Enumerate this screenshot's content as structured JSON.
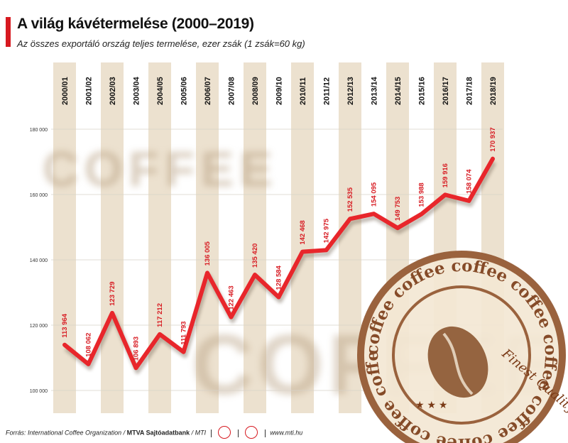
{
  "header": {
    "title": "A világ kávétermelése (2000–2019)",
    "subtitle": "Az összes exportáló ország teljes termelése, ezer zsák (1 zsák=60 kg)"
  },
  "background_text": {
    "word": "COFFEE"
  },
  "footer": {
    "source": "Forrás: International Coffee Organization / ",
    "agency": "MTVA Sajtóadatbank",
    "agency2": " / MTI",
    "url": "www.mti.hu"
  },
  "stamp": {
    "ring_text": "coffee",
    "script_text": "Finest Quality"
  },
  "colors": {
    "line": "#e8262b",
    "label": "#d71920",
    "column": "#ece1cf",
    "accent": "#d71920"
  },
  "chart_data": {
    "type": "line",
    "title": "A világ kávétermelése (2000–2019)",
    "ylabel": "",
    "xlabel": "",
    "categories": [
      "2000/01",
      "2001/02",
      "2002/03",
      "2003/04",
      "2004/05",
      "2005/06",
      "2006/07",
      "2007/08",
      "2008/09",
      "2009/10",
      "2010/11",
      "2011/12",
      "2012/13",
      "2013/14",
      "2014/15",
      "2015/16",
      "2016/17",
      "2017/18",
      "2018/19"
    ],
    "values": [
      113964,
      108062,
      123729,
      106893,
      117212,
      111793,
      136005,
      122463,
      135420,
      128584,
      142468,
      142975,
      152535,
      154095,
      149753,
      153988,
      159916,
      158074,
      170937
    ],
    "value_labels": [
      "113 964",
      "108 062",
      "123 729",
      "106 893",
      "117 212",
      "111 793",
      "136 005",
      "122 463",
      "135 420",
      "128 584",
      "142 468",
      "142 975",
      "152 535",
      "154 095",
      "149 753",
      "153 988",
      "159 916",
      "158 074",
      "170 937"
    ],
    "yticks": [
      100000,
      120000,
      140000,
      160000,
      180000
    ],
    "ytick_labels": [
      "100 000",
      "120 000",
      "140 000",
      "160 000",
      "180 000"
    ],
    "ylim": [
      100000,
      180000
    ],
    "grid": true,
    "legend": "none"
  }
}
